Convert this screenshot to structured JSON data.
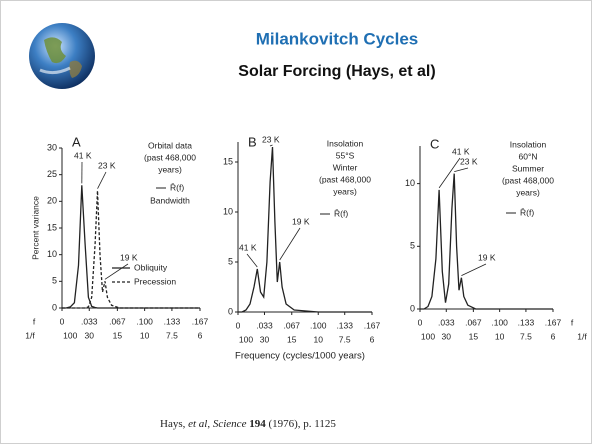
{
  "slide": {
    "title": "Milankovitch Cycles",
    "subtitle": "Solar Forcing (Hays, et al)",
    "citation": {
      "author": "Hays,",
      "etal": "et al",
      "sep": ",",
      "journal": "Science",
      "volume": "194",
      "rest": "(1976), p. 1125"
    },
    "x_label": "Frequency (cycles/1000 years)"
  },
  "chart_data": [
    {
      "type": "line",
      "panel": "A",
      "y_label": "Percent variance",
      "note": [
        "Orbital data",
        "(past 468,000",
        "years)"
      ],
      "key_label": "R̄(f)",
      "key_note": "Bandwidth",
      "row_labels": [
        "f",
        "1/f"
      ],
      "annotations": [
        "41 K",
        "23 K",
        "19 K"
      ],
      "x": [
        0,
        0.005,
        0.01,
        0.015,
        0.02,
        0.024,
        0.028,
        0.032,
        0.036,
        0.04,
        0.043,
        0.046,
        0.049,
        0.052,
        0.055,
        0.06,
        0.07,
        0.1,
        0.133,
        0.167
      ],
      "series": [
        {
          "name": "Obliquity",
          "color": "#222222",
          "style": "solid",
          "values": [
            0,
            0,
            0.2,
            1,
            8,
            23,
            12,
            2,
            0.3,
            0.1,
            0,
            0,
            0,
            0,
            0,
            0,
            0,
            0,
            0,
            0
          ]
        },
        {
          "name": "Precession",
          "color": "#222222",
          "style": "dashed",
          "values": [
            0,
            0,
            0,
            0,
            0,
            0,
            0,
            0.2,
            2,
            12,
            22,
            10,
            3,
            5,
            2,
            0.5,
            0,
            0,
            0,
            0
          ]
        }
      ],
      "xlim": [
        0,
        0.167
      ],
      "ylim": [
        0,
        30
      ],
      "yticks": [
        0,
        5,
        10,
        15,
        20,
        25,
        30
      ],
      "xticks": [
        0,
        {
          "value": 0.033,
          "label": ".033"
        },
        {
          "value": 0.067,
          "label": ".067"
        },
        {
          "value": 0.1,
          "label": ".100"
        },
        {
          "value": 0.133,
          "label": ".133"
        },
        {
          "value": 0.167,
          "label": ".167"
        }
      ],
      "period_ticks": [
        {
          "value": 0.01,
          "label": "100"
        },
        {
          "value": 0.033,
          "label": "30"
        },
        {
          "value": 0.067,
          "label": "15"
        },
        {
          "value": 0.1,
          "label": "10"
        },
        {
          "value": 0.133,
          "label": "7.5"
        },
        {
          "value": 0.167,
          "label": "6"
        }
      ]
    },
    {
      "type": "line",
      "panel": "B",
      "note": [
        "Insolation",
        "55°S",
        "Winter",
        "(past 468,000",
        "years)"
      ],
      "key_label": "R̄(f)",
      "annotations": [
        "41 K",
        "23 K",
        "19 K"
      ],
      "x": [
        0,
        0.005,
        0.01,
        0.015,
        0.02,
        0.024,
        0.028,
        0.032,
        0.036,
        0.04,
        0.043,
        0.046,
        0.049,
        0.052,
        0.055,
        0.06,
        0.07,
        0.1,
        0.133,
        0.167
      ],
      "series": [
        {
          "color": "#222222",
          "style": "solid",
          "values": [
            0,
            0,
            0.2,
            0.8,
            2.5,
            4.3,
            2,
            1.5,
            5,
            13,
            16.5,
            9,
            3,
            5,
            2.5,
            0.8,
            0.2,
            0,
            0,
            0
          ]
        }
      ],
      "xlim": [
        0,
        0.167
      ],
      "ylim": [
        0,
        17
      ],
      "yticks": [
        0,
        5,
        10,
        15
      ],
      "xticks": [
        0,
        {
          "value": 0.033,
          "label": ".033"
        },
        {
          "value": 0.067,
          "label": ".067"
        },
        {
          "value": 0.1,
          "label": ".100"
        },
        {
          "value": 0.133,
          "label": ".133"
        },
        {
          "value": 0.167,
          "label": ".167"
        }
      ],
      "period_ticks": [
        {
          "value": 0.01,
          "label": "100"
        },
        {
          "value": 0.033,
          "label": "30"
        },
        {
          "value": 0.067,
          "label": "15"
        },
        {
          "value": 0.1,
          "label": "10"
        },
        {
          "value": 0.133,
          "label": "7.5"
        },
        {
          "value": 0.167,
          "label": "6"
        }
      ]
    },
    {
      "type": "line",
      "panel": "C",
      "note": [
        "Insolation",
        "60°N",
        "Summer",
        "(past 468,000",
        "years)"
      ],
      "key_label": "R̄(f)",
      "row_labels": [
        "f",
        "1/f"
      ],
      "annotations": [
        "41 K",
        "23 K",
        "19 K"
      ],
      "x": [
        0,
        0.005,
        0.01,
        0.015,
        0.02,
        0.024,
        0.028,
        0.032,
        0.036,
        0.04,
        0.043,
        0.046,
        0.049,
        0.052,
        0.055,
        0.06,
        0.07,
        0.1,
        0.133,
        0.167
      ],
      "series": [
        {
          "color": "#222222",
          "style": "solid",
          "values": [
            0,
            0,
            0.2,
            1,
            4,
            9.5,
            3,
            0.5,
            2,
            8,
            10.8,
            5,
            1.5,
            2.5,
            1,
            0.3,
            0,
            0,
            0,
            0
          ]
        }
      ],
      "xlim": [
        0,
        0.167
      ],
      "ylim": [
        0,
        13
      ],
      "yticks": [
        0,
        5,
        10
      ],
      "xticks": [
        0,
        {
          "value": 0.033,
          "label": ".033"
        },
        {
          "value": 0.067,
          "label": ".067"
        },
        {
          "value": 0.1,
          "label": ".100"
        },
        {
          "value": 0.133,
          "label": ".133"
        },
        {
          "value": 0.167,
          "label": ".167"
        }
      ],
      "period_ticks": [
        {
          "value": 0.01,
          "label": "100"
        },
        {
          "value": 0.033,
          "label": "30"
        },
        {
          "value": 0.067,
          "label": "15"
        },
        {
          "value": 0.1,
          "label": "10"
        },
        {
          "value": 0.133,
          "label": "7.5"
        },
        {
          "value": 0.167,
          "label": "6"
        }
      ]
    }
  ]
}
